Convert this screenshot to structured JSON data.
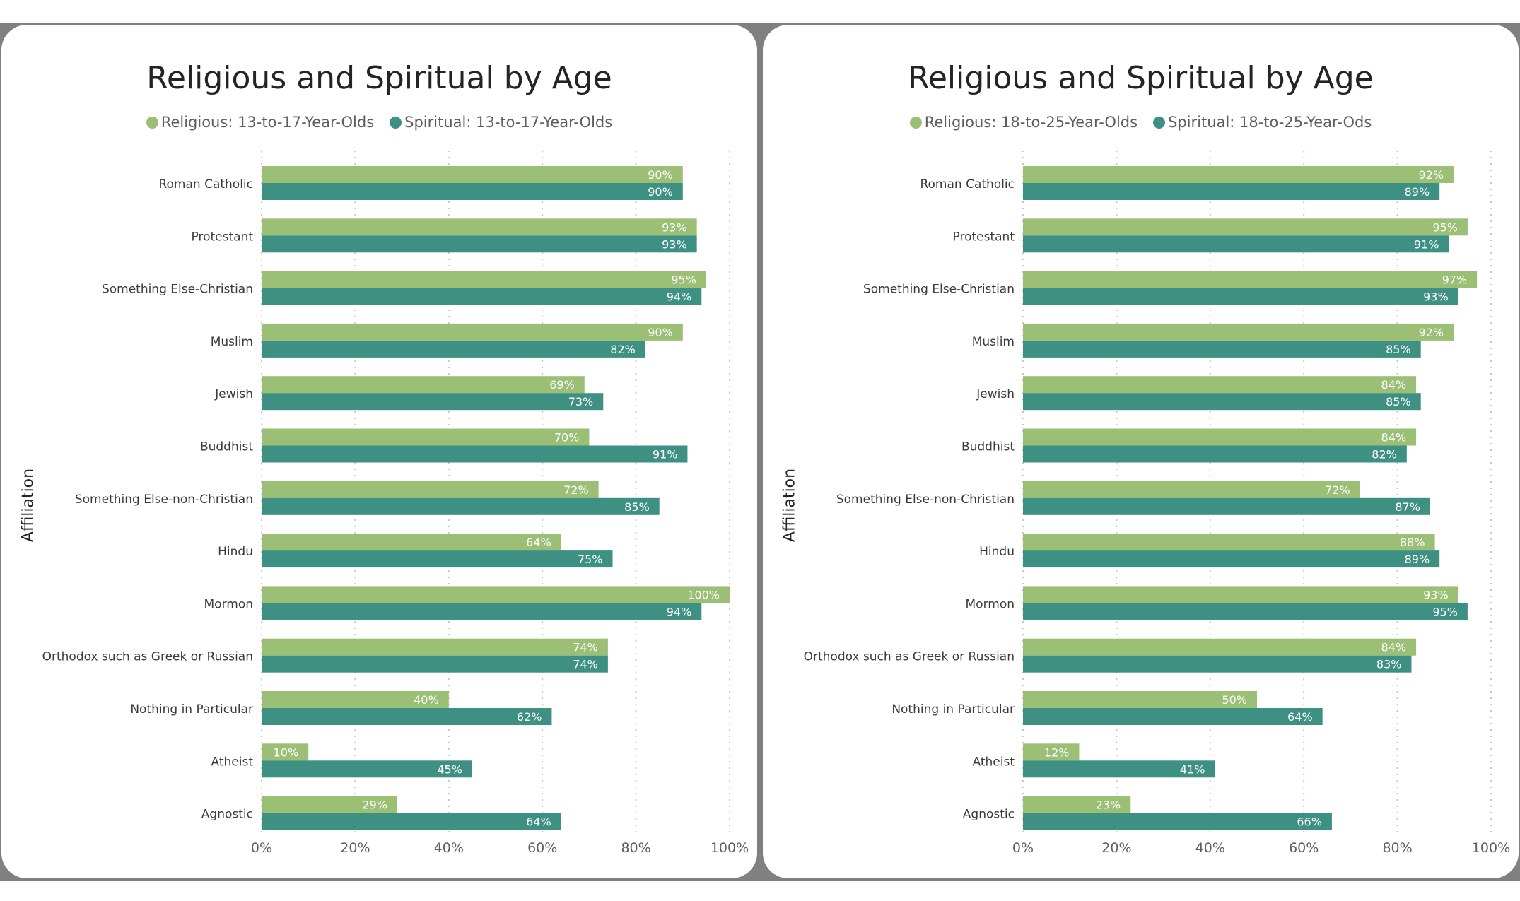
{
  "colors": {
    "religious": "#9bbf74",
    "spiritual": "#3e9082",
    "gridline": "#c8c8c8",
    "backdrop": "#808080"
  },
  "chart_data": [
    {
      "type": "bar",
      "orientation": "horizontal",
      "title": "Religious and Spiritual by Age",
      "ylabel": "Affiliation",
      "xlim": [
        0,
        100
      ],
      "xticks": [
        "0%",
        "20%",
        "40%",
        "60%",
        "80%",
        "100%"
      ],
      "categories": [
        "Roman Catholic",
        "Protestant",
        "Something Else-Christian",
        "Muslim",
        "Jewish",
        "Buddhist",
        "Something Else-non-Christian",
        "Hindu",
        "Mormon",
        "Orthodox such as Greek or Russian",
        "Nothing in Particular",
        "Atheist",
        "Agnostic"
      ],
      "series": [
        {
          "name": "Religious: 13-to-17-Year-Olds",
          "values": [
            90,
            93,
            95,
            90,
            69,
            70,
            72,
            64,
            100,
            74,
            40,
            10,
            29
          ]
        },
        {
          "name": "Spiritual: 13-to-17-Year-Olds",
          "values": [
            90,
            93,
            94,
            82,
            73,
            91,
            85,
            75,
            94,
            74,
            62,
            45,
            64
          ]
        }
      ]
    },
    {
      "type": "bar",
      "orientation": "horizontal",
      "title": "Religious and Spiritual by Age",
      "ylabel": "Affiliation",
      "xlim": [
        0,
        100
      ],
      "xticks": [
        "0%",
        "20%",
        "40%",
        "60%",
        "80%",
        "100%"
      ],
      "categories": [
        "Roman Catholic",
        "Protestant",
        "Something Else-Christian",
        "Muslim",
        "Jewish",
        "Buddhist",
        "Something Else-non-Christian",
        "Hindu",
        "Mormon",
        "Orthodox such as Greek or Russian",
        "Nothing in Particular",
        "Atheist",
        "Agnostic"
      ],
      "series": [
        {
          "name": "Religious: 18-to-25-Year-Olds",
          "values": [
            92,
            95,
            97,
            92,
            84,
            84,
            72,
            88,
            93,
            84,
            50,
            12,
            23
          ]
        },
        {
          "name": "Spiritual: 18-to-25-Year-Ods",
          "values": [
            89,
            91,
            93,
            85,
            85,
            82,
            87,
            89,
            95,
            83,
            64,
            41,
            66
          ]
        }
      ]
    }
  ]
}
